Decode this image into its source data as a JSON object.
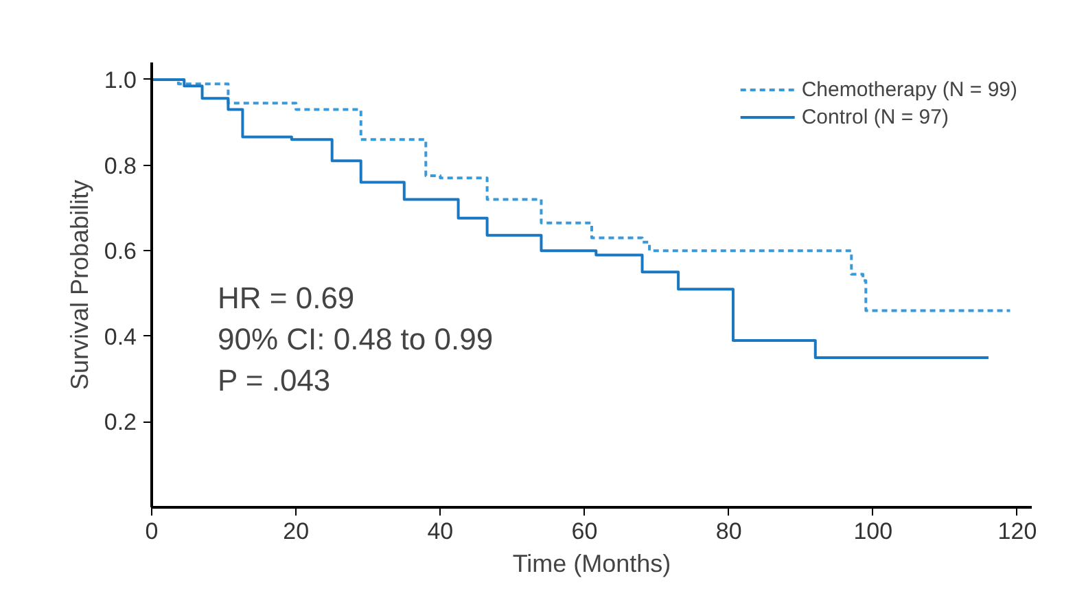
{
  "chart_data": {
    "type": "step",
    "xlabel": "Time (Months)",
    "ylabel": "Survival Probability",
    "xlim": [
      0,
      122
    ],
    "ylim": [
      0,
      1.04
    ],
    "xticks": [
      0,
      20,
      40,
      60,
      80,
      100,
      120
    ],
    "yticks": [
      0.2,
      0.4,
      0.6,
      0.8,
      {
        "value": 1,
        "label": "1.0"
      }
    ],
    "legend": "top right",
    "grid": false,
    "annotations": [
      "HR = 0.69",
      "90% CI: 0.48 to 0.99",
      "P = .043"
    ],
    "series": [
      {
        "name": "Chemotherapy (N = 99)",
        "color": "#3a9ad9",
        "line_style": "dashed",
        "x": [
          0,
          3.7,
          10.6,
          20,
          29,
          38,
          40,
          46.5,
          54,
          61,
          68,
          69,
          97,
          98.6,
          99,
          119
        ],
        "values": [
          1.0,
          0.99,
          0.945,
          0.93,
          0.86,
          0.775,
          0.77,
          0.72,
          0.665,
          0.63,
          0.62,
          0.6,
          0.545,
          0.53,
          0.46,
          0.46
        ]
      },
      {
        "name": "Control (N = 97)",
        "color": "#1a78c2",
        "line_style": "solid",
        "x": [
          0,
          4.5,
          7,
          10.6,
          12.6,
          19.4,
          25,
          29,
          35,
          42.5,
          46.5,
          54,
          61.6,
          68,
          73,
          80.6,
          92,
          116
        ],
        "values": [
          1.0,
          0.985,
          0.956,
          0.93,
          0.866,
          0.86,
          0.81,
          0.76,
          0.72,
          0.676,
          0.636,
          0.6,
          0.59,
          0.55,
          0.51,
          0.39,
          0.35,
          0.35
        ]
      }
    ]
  }
}
